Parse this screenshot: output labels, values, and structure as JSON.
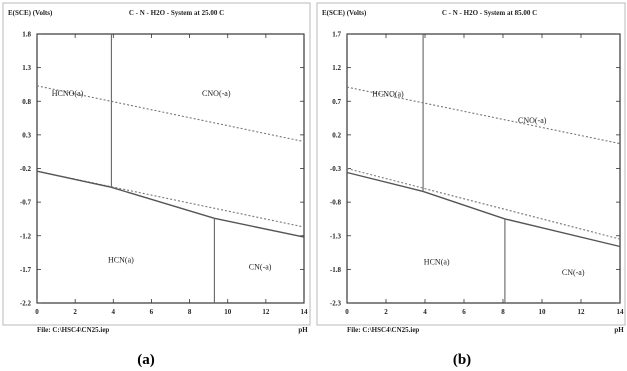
{
  "chart_data": [
    {
      "type": "line",
      "panel_label": "(a)",
      "title": "C - N - H2O - System at 25.00 C",
      "ylabel": "E(SCE) (Volts)",
      "xlabel": "pH",
      "file_label": "File: C:\\HSC4\\CN25.iep",
      "xlim": [
        0,
        14
      ],
      "ylim": [
        -2.2,
        1.8
      ],
      "x_ticks": [
        0,
        2,
        4,
        6,
        8,
        10,
        12,
        14
      ],
      "y_ticks": [
        1.8,
        1.3,
        0.8,
        0.3,
        -0.2,
        -0.7,
        -1.2,
        -1.7,
        -2.2
      ],
      "y_tick_labels": [
        "1.8",
        "1.3",
        "0.8",
        "0.3",
        "-0.2",
        "-0.7",
        "-1.2",
        "-1.7",
        "-2.2"
      ],
      "series": [
        {
          "style": "dotted",
          "x": [
            0,
            14
          ],
          "y": [
            1.03,
            0.2
          ]
        },
        {
          "style": "dotted",
          "x": [
            0,
            14
          ],
          "y": [
            -0.24,
            -1.07
          ]
        },
        {
          "style": "solid",
          "x": [
            0,
            3.9,
            9.3,
            14
          ],
          "y": [
            -0.24,
            -0.48,
            -0.94,
            -1.22
          ]
        },
        {
          "style": "solid",
          "x": [
            3.9,
            3.9
          ],
          "y": [
            1.8,
            -0.48
          ]
        },
        {
          "style": "solid",
          "x": [
            9.3,
            9.3
          ],
          "y": [
            -0.94,
            -2.2
          ]
        }
      ],
      "region_labels": [
        {
          "text": "HCNO(a)",
          "x": 1.6,
          "y": 0.88
        },
        {
          "text": "CNO(-a)",
          "x": 9.4,
          "y": 0.88
        },
        {
          "text": "HCN(a)",
          "x": 4.4,
          "y": -1.6
        },
        {
          "text": "CN(-a)",
          "x": 11.7,
          "y": -1.7
        }
      ]
    },
    {
      "type": "line",
      "panel_label": "(b)",
      "title": "C - N - H2O - System at 85.00 C",
      "ylabel": "E(SCE) (Volts)",
      "xlabel": "pH",
      "file_label": "File: C:\\HSC4\\CN25.iep",
      "xlim": [
        0,
        14
      ],
      "ylim": [
        -2.3,
        1.7
      ],
      "x_ticks": [
        0,
        2,
        4,
        6,
        8,
        10,
        12,
        14
      ],
      "y_ticks": [
        1.7,
        1.2,
        0.7,
        0.2,
        -0.3,
        -0.8,
        -1.3,
        -1.8,
        -2.3
      ],
      "y_tick_labels": [
        "1.7",
        "1.2",
        "0.7",
        "0.2",
        "-0.3",
        "-0.8",
        "-1.3",
        "-1.8",
        "-2.3"
      ],
      "series": [
        {
          "style": "dotted",
          "x": [
            0,
            14
          ],
          "y": [
            0.91,
            0.07
          ]
        },
        {
          "style": "dotted",
          "x": [
            0,
            14
          ],
          "y": [
            -0.3,
            -1.35
          ]
        },
        {
          "style": "solid",
          "x": [
            0,
            3.9,
            8.1,
            14
          ],
          "y": [
            -0.36,
            -0.64,
            -1.05,
            -1.46
          ]
        },
        {
          "style": "solid",
          "x": [
            3.9,
            3.9
          ],
          "y": [
            1.7,
            -0.64
          ]
        },
        {
          "style": "solid",
          "x": [
            8.1,
            8.1
          ],
          "y": [
            -1.05,
            -2.3
          ]
        }
      ],
      "region_labels": [
        {
          "text": "HCNO(a)",
          "x": 2.1,
          "y": 0.77
        },
        {
          "text": "CNO(-a)",
          "x": 9.5,
          "y": 0.38
        },
        {
          "text": "HCN(a)",
          "x": 4.6,
          "y": -1.73
        },
        {
          "text": "CN(-a)",
          "x": 11.6,
          "y": -1.88
        }
      ]
    }
  ]
}
